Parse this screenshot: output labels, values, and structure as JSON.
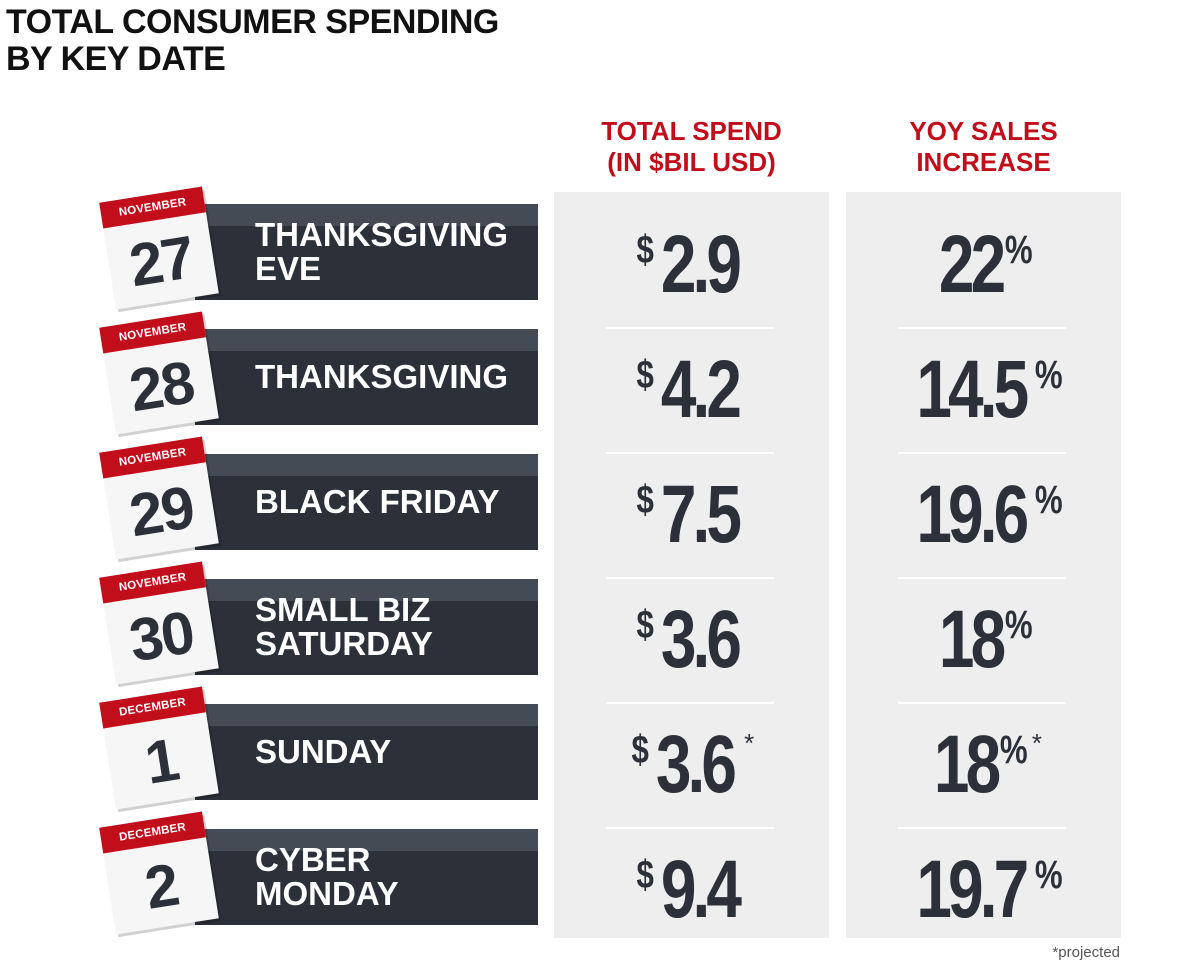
{
  "title": {
    "line1": "TOTAL CONSUMER SPENDING",
    "line2": "BY KEY DATE"
  },
  "columns": {
    "spend": {
      "line1": "TOTAL SPEND",
      "line2": "(IN $BIL USD)"
    },
    "yoy": {
      "line1": "YOY SALES",
      "line2": "INCREASE"
    }
  },
  "symbols": {
    "dollar": "$",
    "percent": "%",
    "asterisk": "*"
  },
  "footnote": "*projected",
  "colors": {
    "accent_red": "#c20e1a",
    "band_dark": "#2c3038",
    "band_top": "#454b54",
    "column_bg": "#eeeeee"
  },
  "rows": [
    {
      "month": "NOVEMBER",
      "day": "27",
      "label": "THANKSGIVING\nEVE",
      "spend": "2.9",
      "yoy": "22",
      "projected": false
    },
    {
      "month": "NOVEMBER",
      "day": "28",
      "label": "THANKSGIVING",
      "spend": "4.2",
      "yoy": "14.5",
      "projected": false
    },
    {
      "month": "NOVEMBER",
      "day": "29",
      "label": "BLACK FRIDAY",
      "spend": "7.5",
      "yoy": "19.6",
      "projected": false
    },
    {
      "month": "NOVEMBER",
      "day": "30",
      "label": "SMALL BIZ\nSATURDAY",
      "spend": "3.6",
      "yoy": "18",
      "projected": false
    },
    {
      "month": "DECEMBER",
      "day": "1",
      "label": "SUNDAY",
      "spend": "3.6",
      "yoy": "18",
      "projected": true
    },
    {
      "month": "DECEMBER",
      "day": "2",
      "label": "CYBER\nMONDAY",
      "spend": "9.4",
      "yoy": "19.7",
      "projected": false
    }
  ],
  "chart_data": {
    "type": "table",
    "title": "TOTAL CONSUMER SPENDING BY KEY DATE",
    "columns": [
      "TOTAL SPEND (IN $BIL USD)",
      "YOY SALES INCREASE"
    ],
    "categories": [
      "THANKSGIVING EVE",
      "THANKSGIVING",
      "BLACK FRIDAY",
      "SMALL BIZ SATURDAY",
      "SUNDAY",
      "CYBER MONDAY"
    ],
    "dates": [
      "NOVEMBER 27",
      "NOVEMBER 28",
      "NOVEMBER 29",
      "NOVEMBER 30",
      "DECEMBER 1",
      "DECEMBER 2"
    ],
    "series": [
      {
        "name": "TOTAL SPEND (IN $BIL USD)",
        "values": [
          2.9,
          4.2,
          7.5,
          3.6,
          3.6,
          9.4
        ]
      },
      {
        "name": "YOY SALES INCREASE",
        "values": [
          22,
          14.5,
          19.6,
          18,
          18,
          19.7
        ]
      }
    ],
    "annotations": [
      "*projected"
    ]
  }
}
